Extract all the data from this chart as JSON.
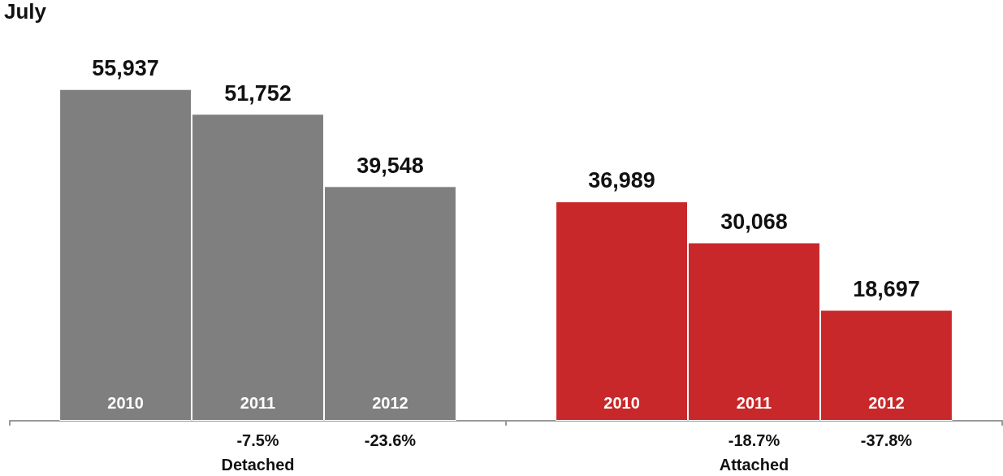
{
  "chart_data": {
    "type": "bar",
    "title": "July",
    "categories": [
      "Detached",
      "Attached"
    ],
    "series": [
      {
        "name": "2010",
        "values": [
          55937,
          36989
        ],
        "value_labels": [
          "55,937",
          "36,989"
        ],
        "colors": [
          "#7f7f7f",
          "#c9282a"
        ]
      },
      {
        "name": "2011",
        "values": [
          51752,
          30068
        ],
        "value_labels": [
          "51,752",
          "30,068"
        ],
        "colors": [
          "#7f7f7f",
          "#c9282a"
        ]
      },
      {
        "name": "2012",
        "values": [
          39548,
          18697
        ],
        "value_labels": [
          "39,548",
          "18,697"
        ],
        "colors": [
          "#7f7f7f",
          "#c9282a"
        ]
      }
    ],
    "annotations": [
      "-7.5%",
      "-23.6%",
      "-18.7%",
      "-37.8%"
    ],
    "grid": false,
    "legend": false
  }
}
